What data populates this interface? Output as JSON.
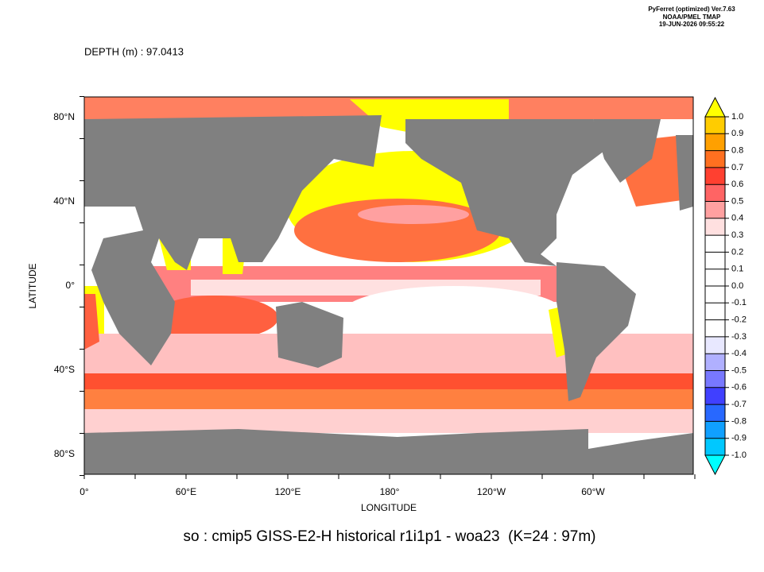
{
  "header": {
    "program": "PyFerret (optimized) Ver.7.63",
    "lab": "NOAA/PMEL TMAP",
    "timestamp": "19-JUN-2026 09:55:22"
  },
  "depth_label": "DEPTH (m) : 97.0413",
  "map": {
    "x_axis": {
      "title": "LONGITUDE",
      "labels": [
        "0°",
        "60°E",
        "120°E",
        "180°",
        "120°W",
        "60°W"
      ]
    },
    "y_axis": {
      "title": "LATITUDE",
      "labels": [
        "80°N",
        "40°N",
        "0°",
        "40°S",
        "80°S"
      ]
    }
  },
  "colorbar": {
    "levels": [
      {
        "value": 1.0,
        "label": "1.0"
      },
      {
        "value": 0.9,
        "label": "0.9"
      },
      {
        "value": 0.8,
        "label": "0.8"
      },
      {
        "value": 0.7,
        "label": "0.7"
      },
      {
        "value": 0.6,
        "label": "0.6"
      },
      {
        "value": 0.5,
        "label": "0.5"
      },
      {
        "value": 0.4,
        "label": "0.4"
      },
      {
        "value": 0.3,
        "label": "0.3"
      },
      {
        "value": 0.2,
        "label": "0.2"
      },
      {
        "value": 0.1,
        "label": "0.1"
      },
      {
        "value": 0.0,
        "label": "0.0"
      },
      {
        "value": -0.1,
        "label": "-0.1"
      },
      {
        "value": -0.2,
        "label": "-0.2"
      },
      {
        "value": -0.3,
        "label": "-0.3"
      },
      {
        "value": -0.4,
        "label": "-0.4"
      },
      {
        "value": -0.5,
        "label": "-0.5"
      },
      {
        "value": -0.6,
        "label": "-0.6"
      },
      {
        "value": -0.7,
        "label": "-0.7"
      },
      {
        "value": -0.8,
        "label": "-0.8"
      },
      {
        "value": -0.9,
        "label": "-0.9"
      },
      {
        "value": -1.0,
        "label": "-1.0"
      }
    ],
    "colors": [
      "#ffcc00",
      "#ffa000",
      "#ff7020",
      "#ff4030",
      "#ff6464",
      "#ffa0a0",
      "#ffe0e0",
      "#ffffff",
      "#ffffff",
      "#ffffff",
      "#ffffff",
      "#ffffff",
      "#ffffff",
      "#e8e8ff",
      "#b0b0ff",
      "#7878ff",
      "#4040ff",
      "#2868ff",
      "#10a0ff",
      "#00c8ff"
    ],
    "over_color": "#ffff00",
    "under_color": "#00ffff"
  },
  "title": "so : cmip5 GISS-E2-H historical r1i1p1 - woa23  (K=24 : 97m)"
}
